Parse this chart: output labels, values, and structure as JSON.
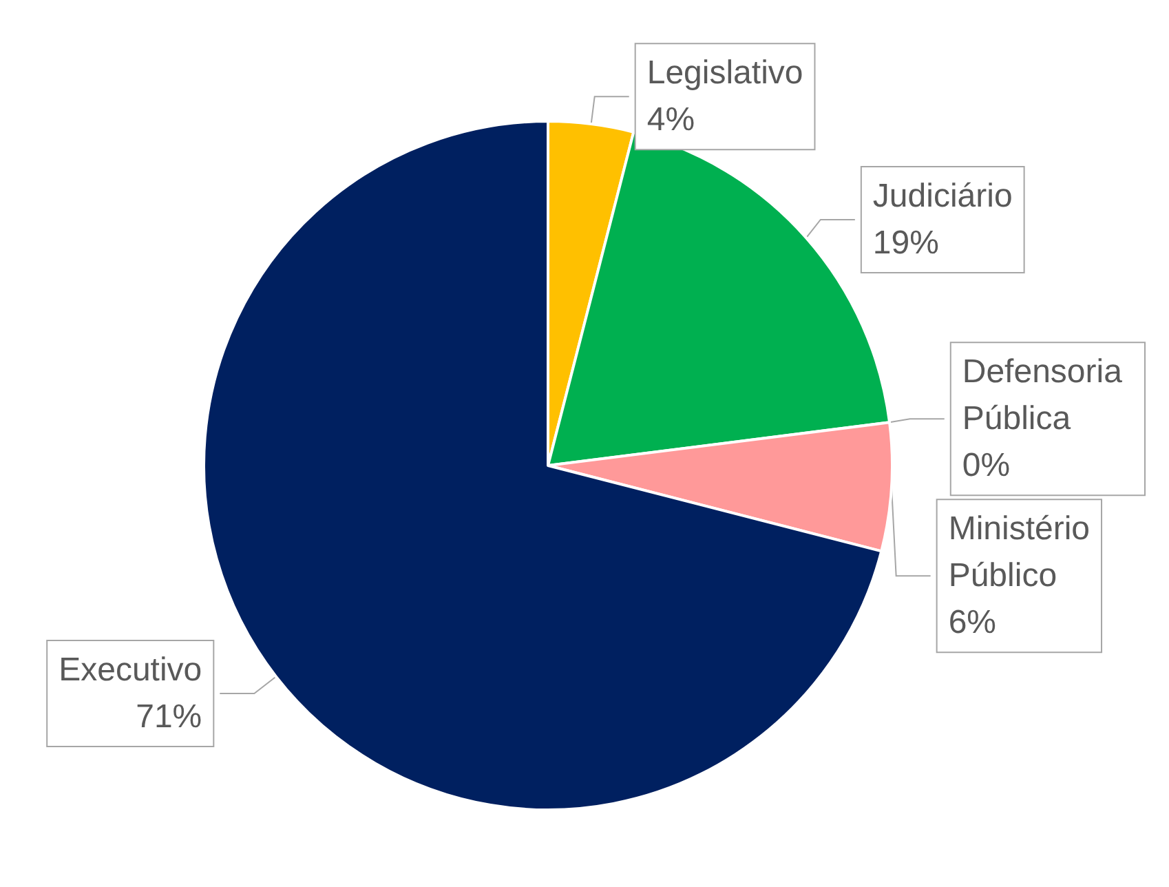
{
  "chart_data": {
    "type": "pie",
    "categories": [
      "Legislativo",
      "Judiciário",
      "Defensoria\nPública",
      "Ministério\nPúblico",
      "Executivo"
    ],
    "values": [
      4,
      19,
      0,
      6,
      71
    ],
    "colors": [
      "#ffc000",
      "#00b050",
      "#c00000",
      "#ff9999",
      "#002060"
    ],
    "value_labels": [
      "4%",
      "19%",
      "0%",
      "6%",
      "71%"
    ]
  }
}
